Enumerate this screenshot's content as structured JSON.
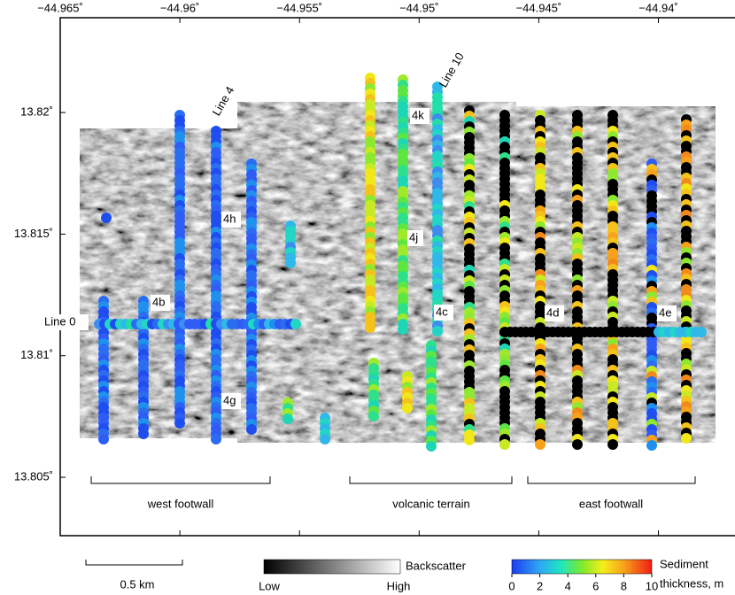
{
  "chart_data": {
    "type": "map",
    "xlim": [
      -44.965,
      -44.9368
    ],
    "ylim": [
      13.8026,
      13.8239
    ],
    "xticks": [
      {
        "value": -44.965,
        "label": "−44.965˚"
      },
      {
        "value": -44.96,
        "label": "−44.96˚"
      },
      {
        "value": -44.955,
        "label": "−44.955˚"
      },
      {
        "value": -44.95,
        "label": "−44.95˚"
      },
      {
        "value": -44.945,
        "label": "−44.945˚"
      },
      {
        "value": -44.94,
        "label": "−44.94˚"
      }
    ],
    "yticks": [
      {
        "value": 13.82,
        "label": "13.82˚"
      },
      {
        "value": 13.815,
        "label": "13.815˚"
      },
      {
        "value": 13.81,
        "label": "13.81˚"
      },
      {
        "value": 13.805,
        "label": "13.805˚"
      }
    ],
    "annotations": [
      "Line 4",
      "Line 10",
      "Line 0",
      "4b",
      "4h",
      "4k",
      "4j",
      "4c",
      "4d",
      "4e",
      "4g"
    ],
    "regions": [
      "west footwall",
      "volcanic terrain",
      "east footwall"
    ],
    "scale_bar": "0.5 km",
    "backscatter_legend": {
      "title": "Backscatter",
      "low": "Low",
      "high": "High"
    },
    "sediment_legend": {
      "title_lines": [
        "Sediment",
        "thickness, m"
      ],
      "lim": [
        0,
        10
      ],
      "ticks": [
        0,
        2,
        4,
        6,
        8,
        10
      ]
    }
  }
}
